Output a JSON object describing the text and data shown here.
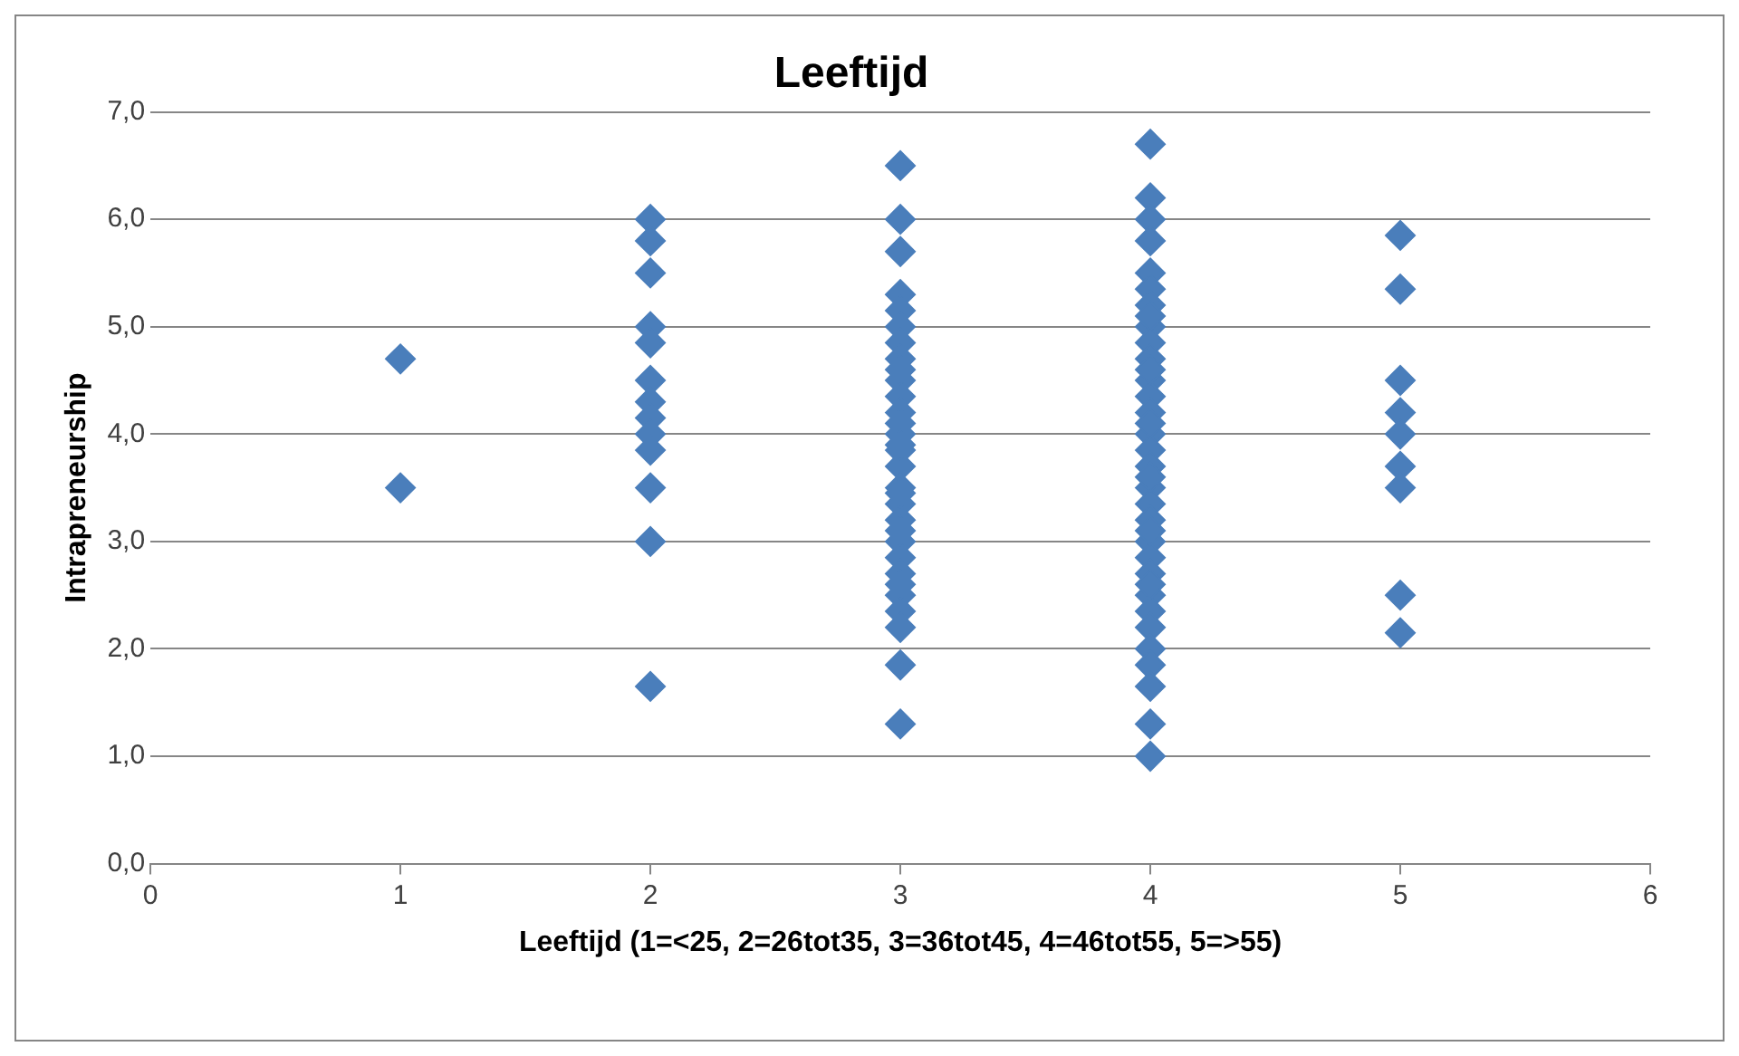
{
  "chart_data": {
    "type": "scatter",
    "title": "Leeftijd",
    "xlabel": "Leeftijd (1=<25, 2=26tot35, 3=36tot45, 4=46tot55, 5=>55)",
    "ylabel": "Intrapreneurship",
    "series": [
      {
        "color": "#4a7ebb",
        "x": [
          1,
          1,
          2,
          2,
          2,
          2,
          2,
          2,
          2,
          2,
          2,
          2,
          2,
          2,
          2,
          3,
          3,
          3,
          3,
          3,
          3,
          3,
          3,
          3,
          3,
          3,
          3,
          3,
          3,
          3,
          3,
          3,
          3,
          3,
          3,
          3,
          3,
          3,
          3,
          3,
          3,
          3,
          3,
          3,
          3,
          3,
          4,
          4,
          4,
          4,
          4,
          4,
          4,
          4,
          4,
          4,
          4,
          4,
          4,
          4,
          4,
          4,
          4,
          4,
          4,
          4,
          4,
          4,
          4,
          4,
          4,
          4,
          4,
          4,
          4,
          4,
          4,
          4,
          4,
          4,
          4,
          4,
          5,
          5,
          5,
          5,
          5,
          5,
          5,
          5,
          5
        ],
        "values": [
          4.7,
          3.5,
          6.0,
          5.8,
          5.5,
          5.0,
          4.85,
          4.5,
          4.3,
          4.15,
          4.0,
          3.85,
          3.5,
          3.0,
          1.65,
          6.5,
          6.0,
          5.7,
          5.3,
          5.15,
          5.0,
          4.85,
          4.7,
          4.5,
          4.35,
          4.2,
          4.0,
          3.85,
          3.7,
          3.5,
          3.35,
          3.2,
          3.0,
          2.85,
          2.7,
          2.5,
          2.35,
          2.2,
          1.85,
          1.3,
          3.1,
          4.1,
          4.6,
          3.9,
          2.6,
          3.45,
          6.7,
          6.2,
          6.0,
          5.8,
          5.5,
          5.35,
          5.2,
          5.0,
          4.85,
          4.7,
          4.5,
          4.35,
          4.2,
          4.0,
          3.85,
          3.7,
          3.5,
          3.35,
          3.2,
          3.0,
          2.85,
          2.7,
          2.5,
          2.35,
          2.2,
          2.0,
          1.85,
          1.65,
          1.3,
          1.0,
          4.1,
          3.1,
          2.6,
          5.1,
          3.6,
          4.6,
          5.85,
          5.35,
          4.5,
          4.2,
          4.0,
          3.7,
          3.5,
          2.5,
          2.15
        ]
      }
    ],
    "xlim": [
      0,
      6
    ],
    "xticks": [
      0,
      1,
      2,
      3,
      4,
      5,
      6
    ],
    "ylim": [
      0,
      7
    ],
    "yticks": [
      {
        "value": 0,
        "label": "0,0"
      },
      {
        "value": 1,
        "label": "1,0"
      },
      {
        "value": 2,
        "label": "2,0"
      },
      {
        "value": 3,
        "label": "3,0"
      },
      {
        "value": 4,
        "label": "4,0"
      },
      {
        "value": 5,
        "label": "5,0"
      },
      {
        "value": 6,
        "label": "6,0"
      },
      {
        "value": 7,
        "label": "7,0"
      }
    ],
    "grid": "y",
    "legend": false,
    "marker": "diamond"
  }
}
